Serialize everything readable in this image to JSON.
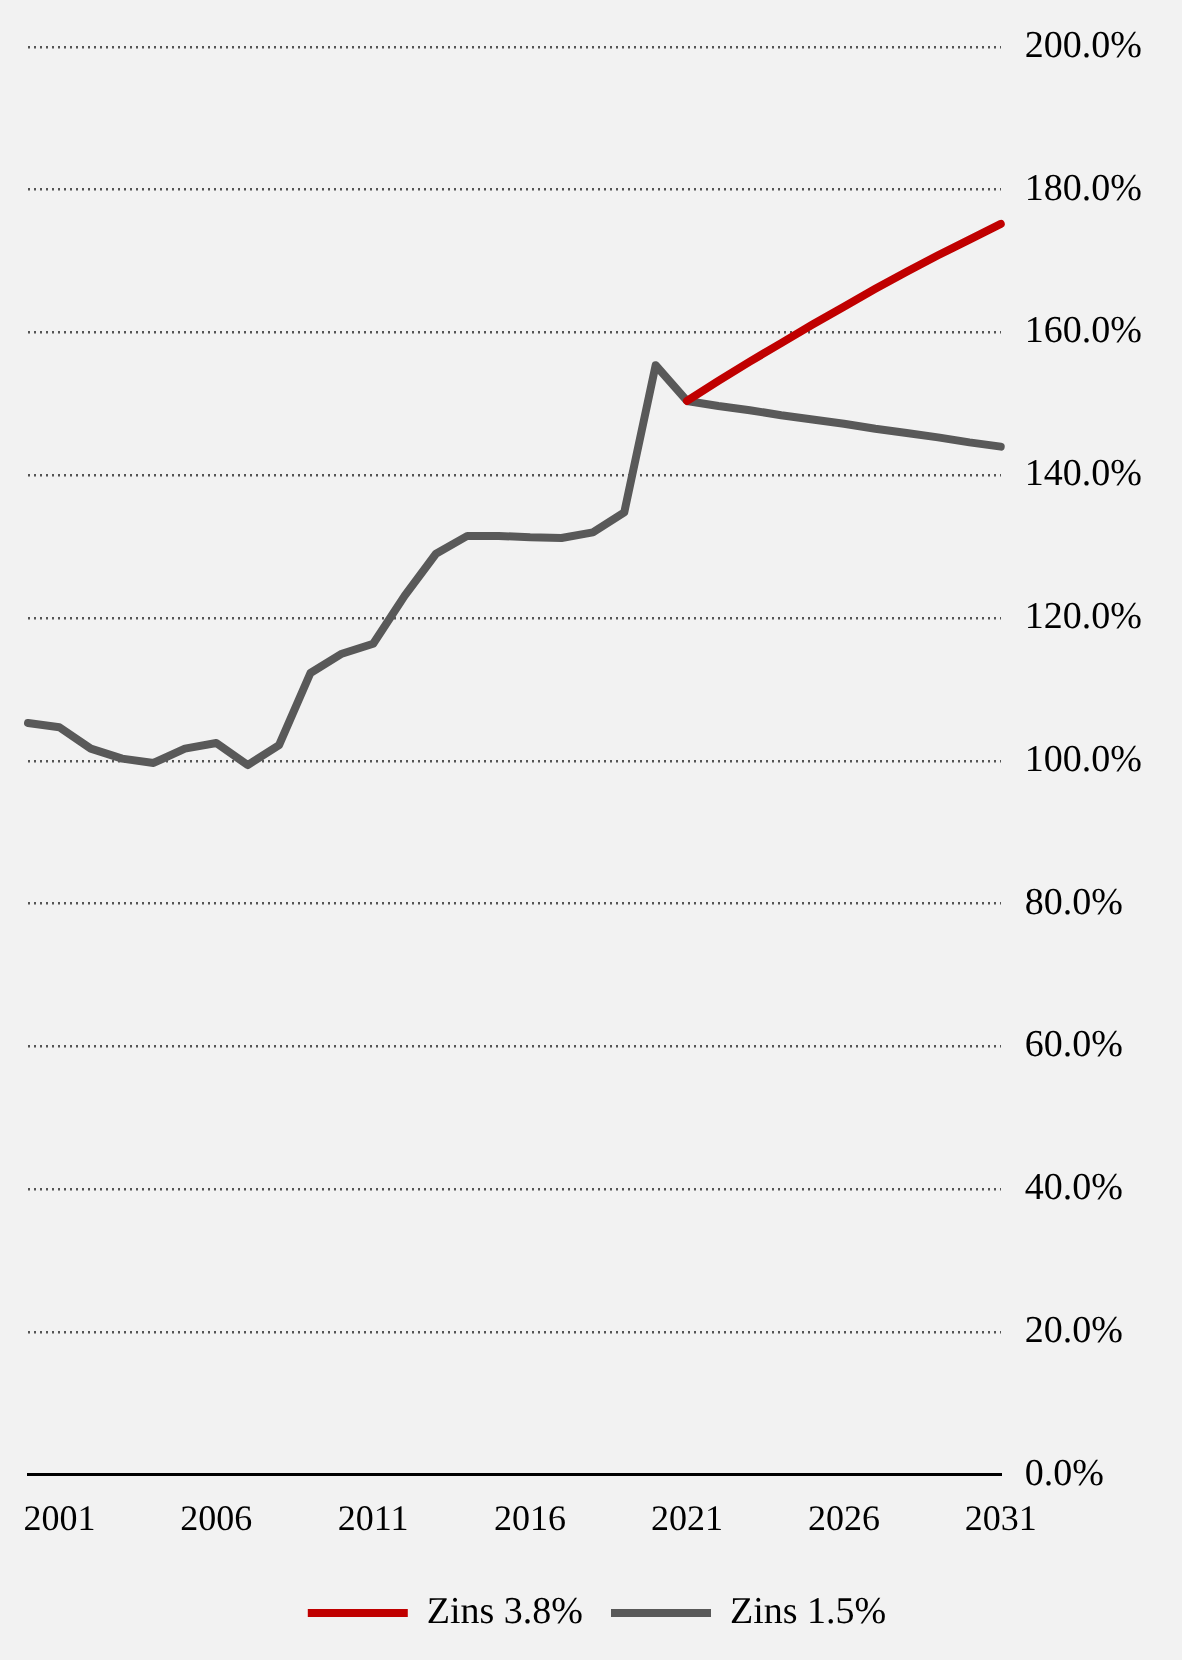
{
  "chart_data": {
    "type": "line",
    "categories": [
      null,
      "2001",
      null,
      null,
      null,
      null,
      "2006",
      null,
      null,
      null,
      null,
      "2011",
      null,
      null,
      null,
      null,
      "2016",
      null,
      null,
      null,
      null,
      "2021",
      null,
      null,
      null,
      null,
      "2026",
      null,
      null,
      null,
      null,
      "2031"
    ],
    "series": [
      {
        "name": "Zins 3.8%",
        "color": "#c00000",
        "values": [
          null,
          null,
          null,
          null,
          null,
          null,
          null,
          null,
          null,
          null,
          null,
          null,
          null,
          null,
          null,
          null,
          null,
          null,
          null,
          null,
          null,
          150.4,
          153.2,
          155.9,
          158.5,
          161.1,
          163.6,
          166.1,
          168.5,
          170.8,
          173.0,
          175.2
        ]
      },
      {
        "name": "Zins 1.5%",
        "color": "#595959",
        "values": [
          105.3,
          104.7,
          101.7,
          100.3,
          99.7,
          101.7,
          102.5,
          99.4,
          102.2,
          112.3,
          115,
          116.4,
          123.1,
          129,
          131.5,
          131.5,
          131.3,
          131.2,
          132,
          134.8,
          155.4,
          150.4,
          149.7,
          149.1,
          148.4,
          147.8,
          147.2,
          146.5,
          145.9,
          145.3,
          144.6,
          144.0
        ]
      }
    ],
    "ylim": [
      0,
      200
    ],
    "yticks": [
      {
        "value": 0,
        "label": "0.0%"
      },
      {
        "value": 20,
        "label": "20.0%"
      },
      {
        "value": 40,
        "label": "40.0%"
      },
      {
        "value": 60,
        "label": "60.0%"
      },
      {
        "value": 80,
        "label": "80.0%"
      },
      {
        "value": 100,
        "label": "100.0%"
      },
      {
        "value": 120,
        "label": "120.0%"
      },
      {
        "value": 140,
        "label": "140.0%"
      },
      {
        "value": 160,
        "label": "160.0%"
      },
      {
        "value": 180,
        "label": "180.0%"
      },
      {
        "value": 200,
        "label": "200.0%"
      }
    ],
    "grid": "y",
    "legend": "bottom",
    "marker": "none",
    "line_style": "solid"
  }
}
